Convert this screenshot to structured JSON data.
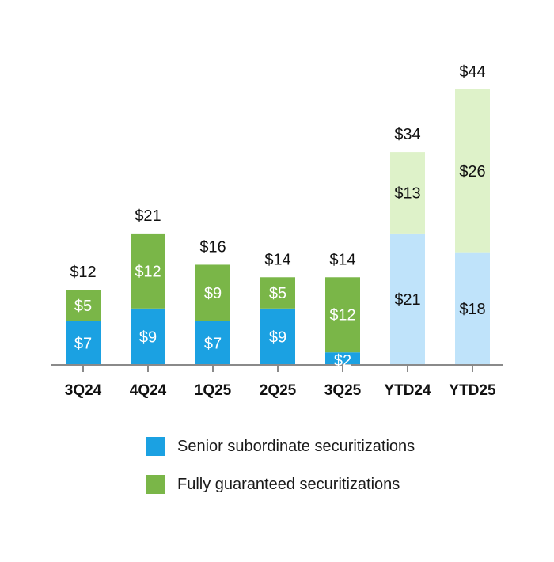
{
  "chart_data": {
    "type": "bar",
    "stacked": true,
    "categories": [
      "3Q24",
      "4Q24",
      "1Q25",
      "2Q25",
      "3Q25",
      "YTD24",
      "YTD25"
    ],
    "series": [
      {
        "name": "Senior subordinate securitizations",
        "values": [
          7,
          9,
          7,
          9,
          2,
          21,
          18
        ]
      },
      {
        "name": "Fully guaranteed securitizations",
        "values": [
          5,
          12,
          9,
          5,
          12,
          13,
          26
        ]
      }
    ],
    "segment_labels": [
      [
        "$7",
        "$9",
        "$7",
        "$9",
        "$2",
        "$21",
        "$18"
      ],
      [
        "$5",
        "$12",
        "$9",
        "$5",
        "$12",
        "$13",
        "$26"
      ]
    ],
    "totals": [
      12,
      21,
      16,
      14,
      14,
      34,
      44
    ],
    "total_labels": [
      "$12",
      "$21",
      "$16",
      "$14",
      "$14",
      "$34",
      "$44"
    ],
    "ylim": [
      0,
      44
    ],
    "title": "",
    "xlabel": "",
    "ylabel": "",
    "grid": false,
    "legend_position": "bottom"
  },
  "colors": {
    "senior": "#1ba1e2",
    "guaranteed": "#7ab648",
    "senior_ytd": "#bfe3fa",
    "guaranteed_ytd": "#def2c9",
    "axis": "#8a8a8a",
    "text_dark": "#111111",
    "text_light": "#ffffff"
  },
  "legend": {
    "items": [
      {
        "label": "Senior subordinate securitizations",
        "color": "#1ba1e2"
      },
      {
        "label": "Fully guaranteed securitizations",
        "color": "#7ab648"
      }
    ]
  }
}
